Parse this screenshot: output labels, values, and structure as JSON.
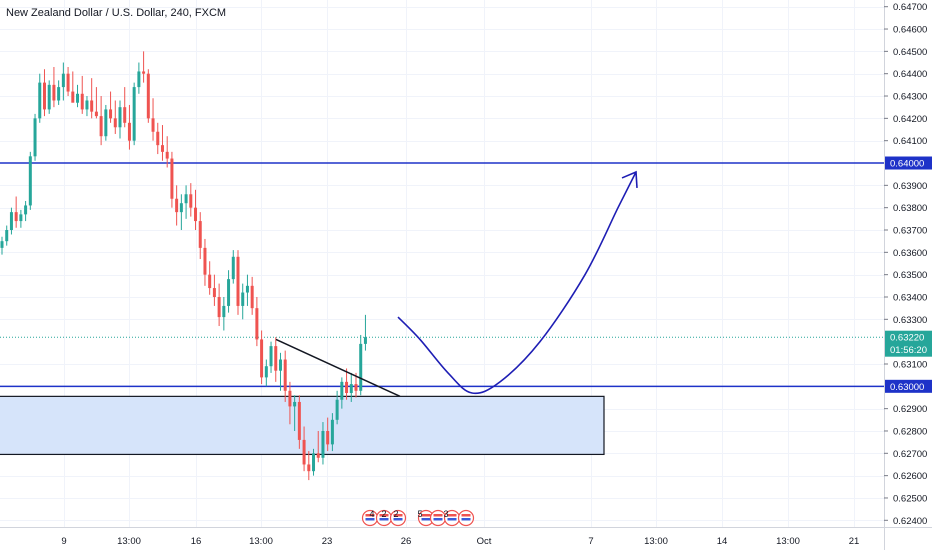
{
  "chart_data": {
    "type": "candlestick",
    "title": "New Zealand Dollar / U.S. Dollar, 240, FXCM",
    "x_ticks": [
      "9",
      "13:00",
      "16",
      "13:00",
      "23",
      "26",
      "Oct",
      "7",
      "13:00",
      "14",
      "13:00",
      "21"
    ],
    "y_ticks": [
      "0.64700",
      "0.64600",
      "0.64500",
      "0.64400",
      "0.64300",
      "0.64200",
      "0.64100",
      "0.63900",
      "0.63800",
      "0.63700",
      "0.63600",
      "0.63500",
      "0.63400",
      "0.63300",
      "0.63100",
      "0.62900",
      "0.62800",
      "0.62700",
      "0.62600",
      "0.62500",
      "0.62400"
    ],
    "ylim": [
      0.6237,
      0.6473
    ],
    "price_badges": [
      {
        "price": 0.64,
        "label": "0.64000",
        "color": "#1e32c8"
      },
      {
        "price": 0.6322,
        "label": "0.63220",
        "color": "#26a69a"
      },
      {
        "price": 0.63,
        "label": "0.63000",
        "color": "#1e32c8"
      }
    ],
    "countdown": "01:56:20",
    "horizontal_lines": [
      {
        "price": 0.64,
        "color": "#1e32c8"
      },
      {
        "price": 0.63,
        "color": "#1e32c8"
      }
    ],
    "zone": {
      "top": 0.62955,
      "bottom": 0.62695,
      "fill": "#d6e4fa",
      "stroke": "#131722"
    },
    "trendline": {
      "from": [
        0.6321,
        276
      ],
      "to": [
        0.62955,
        400
      ]
    },
    "event_flags": [
      "4",
      "2",
      "2",
      "5",
      "3"
    ],
    "colors": {
      "up": "#26a69a",
      "down": "#ef5350",
      "projection": "#1e1eb4"
    },
    "candles": [
      [
        0.6362,
        0.6367,
        0.6359,
        0.6365
      ],
      [
        0.6365,
        0.6372,
        0.6363,
        0.637
      ],
      [
        0.637,
        0.638,
        0.6368,
        0.6378
      ],
      [
        0.6378,
        0.6385,
        0.6371,
        0.6374
      ],
      [
        0.6374,
        0.6379,
        0.6371,
        0.6377
      ],
      [
        0.6377,
        0.6383,
        0.6374,
        0.6381
      ],
      [
        0.6381,
        0.6405,
        0.6379,
        0.6403
      ],
      [
        0.6403,
        0.6422,
        0.6401,
        0.642
      ],
      [
        0.642,
        0.644,
        0.6418,
        0.6436
      ],
      [
        0.6436,
        0.6442,
        0.6421,
        0.6424
      ],
      [
        0.6424,
        0.6437,
        0.6422,
        0.6435
      ],
      [
        0.6435,
        0.6443,
        0.6425,
        0.6428
      ],
      [
        0.6428,
        0.6437,
        0.6426,
        0.6434
      ],
      [
        0.6434,
        0.6445,
        0.6428,
        0.644
      ],
      [
        0.644,
        0.6443,
        0.643,
        0.6432
      ],
      [
        0.6432,
        0.6441,
        0.6429,
        0.6427
      ],
      [
        0.6427,
        0.6435,
        0.6425,
        0.6431
      ],
      [
        0.6431,
        0.6439,
        0.6422,
        0.6424
      ],
      [
        0.6424,
        0.643,
        0.6421,
        0.6428
      ],
      [
        0.6428,
        0.6438,
        0.642,
        0.6423
      ],
      [
        0.6423,
        0.6434,
        0.642,
        0.6421
      ],
      [
        0.6421,
        0.643,
        0.6408,
        0.6412
      ],
      [
        0.6412,
        0.6426,
        0.641,
        0.6424
      ],
      [
        0.6424,
        0.6432,
        0.6418,
        0.642
      ],
      [
        0.642,
        0.6428,
        0.6413,
        0.6416
      ],
      [
        0.6416,
        0.6428,
        0.6411,
        0.6425
      ],
      [
        0.6425,
        0.6434,
        0.6416,
        0.6418
      ],
      [
        0.6418,
        0.6426,
        0.6406,
        0.641
      ],
      [
        0.641,
        0.6436,
        0.6408,
        0.6434
      ],
      [
        0.6434,
        0.6445,
        0.6431,
        0.6441
      ],
      [
        0.6441,
        0.645,
        0.6436,
        0.644
      ],
      [
        0.644,
        0.6442,
        0.6418,
        0.642
      ],
      [
        0.642,
        0.6429,
        0.641,
        0.6414
      ],
      [
        0.6414,
        0.6418,
        0.6404,
        0.6408
      ],
      [
        0.6408,
        0.6417,
        0.6401,
        0.6405
      ],
      [
        0.6405,
        0.6412,
        0.6398,
        0.6402
      ],
      [
        0.6402,
        0.6405,
        0.638,
        0.6384
      ],
      [
        0.6384,
        0.639,
        0.6372,
        0.6378
      ],
      [
        0.6378,
        0.6386,
        0.637,
        0.6382
      ],
      [
        0.6382,
        0.639,
        0.6375,
        0.6386
      ],
      [
        0.6386,
        0.6391,
        0.6376,
        0.638
      ],
      [
        0.638,
        0.6388,
        0.637,
        0.6374
      ],
      [
        0.6374,
        0.6378,
        0.6357,
        0.6362
      ],
      [
        0.6362,
        0.6366,
        0.6345,
        0.635
      ],
      [
        0.635,
        0.6356,
        0.6341,
        0.6344
      ],
      [
        0.6344,
        0.635,
        0.6336,
        0.634
      ],
      [
        0.634,
        0.6346,
        0.6327,
        0.6331
      ],
      [
        0.6331,
        0.634,
        0.6325,
        0.6336
      ],
      [
        0.6336,
        0.6352,
        0.6333,
        0.6348
      ],
      [
        0.6348,
        0.6361,
        0.6346,
        0.6358
      ],
      [
        0.6358,
        0.6361,
        0.6332,
        0.6336
      ],
      [
        0.6336,
        0.6346,
        0.633,
        0.6342
      ],
      [
        0.6342,
        0.635,
        0.6336,
        0.6345
      ],
      [
        0.6345,
        0.6349,
        0.6332,
        0.6335
      ],
      [
        0.6335,
        0.634,
        0.6318,
        0.6321
      ],
      [
        0.6321,
        0.6325,
        0.6301,
        0.6304
      ],
      [
        0.6304,
        0.6312,
        0.63,
        0.6309
      ],
      [
        0.6309,
        0.632,
        0.6306,
        0.6318
      ],
      [
        0.6318,
        0.6322,
        0.6302,
        0.6307
      ],
      [
        0.6307,
        0.6315,
        0.6298,
        0.6312
      ],
      [
        0.6312,
        0.6316,
        0.6293,
        0.6298
      ],
      [
        0.6298,
        0.6302,
        0.6283,
        0.6291
      ],
      [
        0.6291,
        0.6296,
        0.628,
        0.6293
      ],
      [
        0.6293,
        0.6296,
        0.6272,
        0.6276
      ],
      [
        0.6276,
        0.6282,
        0.6262,
        0.6265
      ],
      [
        0.6265,
        0.6271,
        0.6258,
        0.6262
      ],
      [
        0.6262,
        0.6272,
        0.626,
        0.627
      ],
      [
        0.627,
        0.628,
        0.6266,
        0.6268
      ],
      [
        0.6268,
        0.6284,
        0.6265,
        0.628
      ],
      [
        0.628,
        0.6286,
        0.6271,
        0.6274
      ],
      [
        0.6274,
        0.6288,
        0.6271,
        0.6285
      ],
      [
        0.6285,
        0.6298,
        0.6283,
        0.6294
      ],
      [
        0.6294,
        0.6304,
        0.629,
        0.6302
      ],
      [
        0.6302,
        0.6308,
        0.6294,
        0.6297
      ],
      [
        0.6297,
        0.6306,
        0.6293,
        0.6301
      ],
      [
        0.6301,
        0.6306,
        0.6295,
        0.6298
      ],
      [
        0.6298,
        0.6323,
        0.6296,
        0.6319
      ],
      [
        0.6319,
        0.6332,
        0.6316,
        0.6322
      ]
    ],
    "projection_path": [
      [
        0.6331,
        398
      ],
      [
        0.6321,
        420
      ],
      [
        0.6306,
        448
      ],
      [
        0.6297,
        472
      ],
      [
        0.6302,
        500
      ],
      [
        0.632,
        540
      ],
      [
        0.635,
        585
      ],
      [
        0.638,
        618
      ],
      [
        0.6396,
        636
      ]
    ]
  }
}
